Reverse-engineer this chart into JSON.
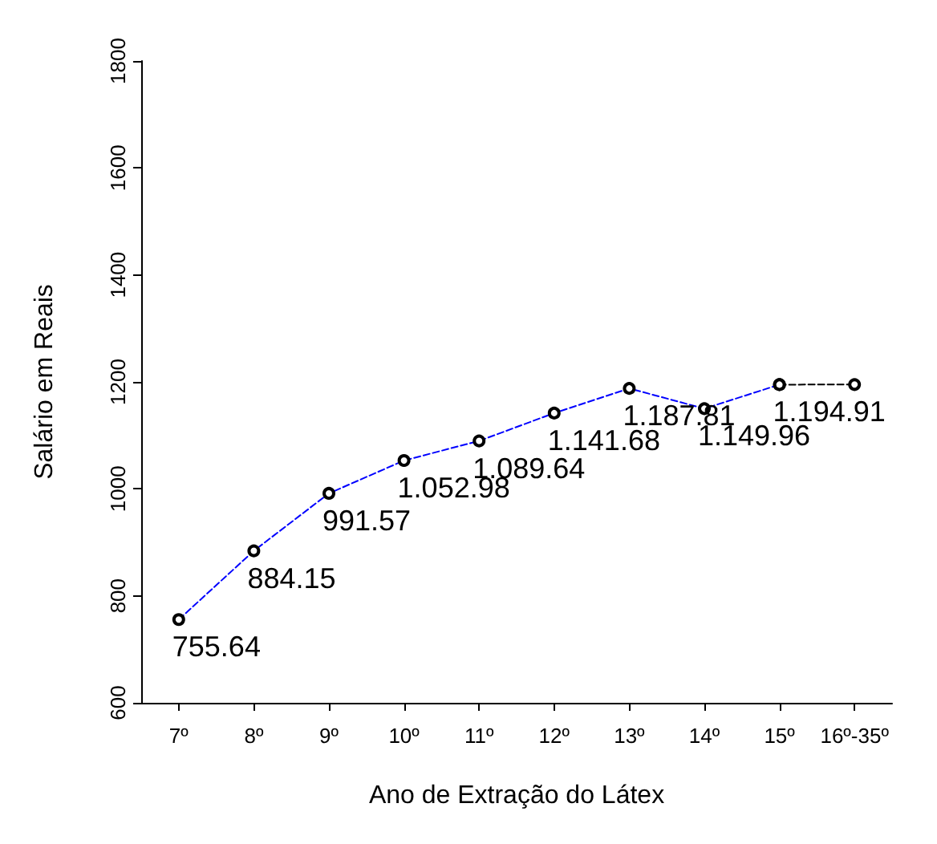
{
  "chart_data": {
    "type": "line",
    "xlabel": "Ano de Extração do Látex",
    "ylabel": "Salário em Reais",
    "categories": [
      "7º",
      "8º",
      "9º",
      "10º",
      "11º",
      "12º",
      "13º",
      "14º",
      "15º",
      "16º-35º"
    ],
    "series": [
      {
        "color": "#0000ff",
        "values": [
          755.64,
          884.15,
          991.57,
          1052.98,
          1089.64,
          1141.68,
          1187.81,
          1149.96,
          1194.91,
          null
        ],
        "value_labels": [
          "755.64",
          "884.15",
          "991.57",
          "1.052.98",
          "1.089.64",
          "1.141.68",
          "1.187.81",
          "1.149.96",
          "1.194.91",
          null
        ]
      },
      {
        "color": "#000000",
        "values": [
          null,
          null,
          null,
          null,
          null,
          null,
          null,
          null,
          1194.91,
          1195
        ]
      }
    ],
    "ylim": [
      600,
      1800
    ],
    "yticks": [
      600,
      800,
      1000,
      1200,
      1400,
      1600,
      1800
    ],
    "grid": false,
    "marker": "circle",
    "line_style": "dashed"
  }
}
